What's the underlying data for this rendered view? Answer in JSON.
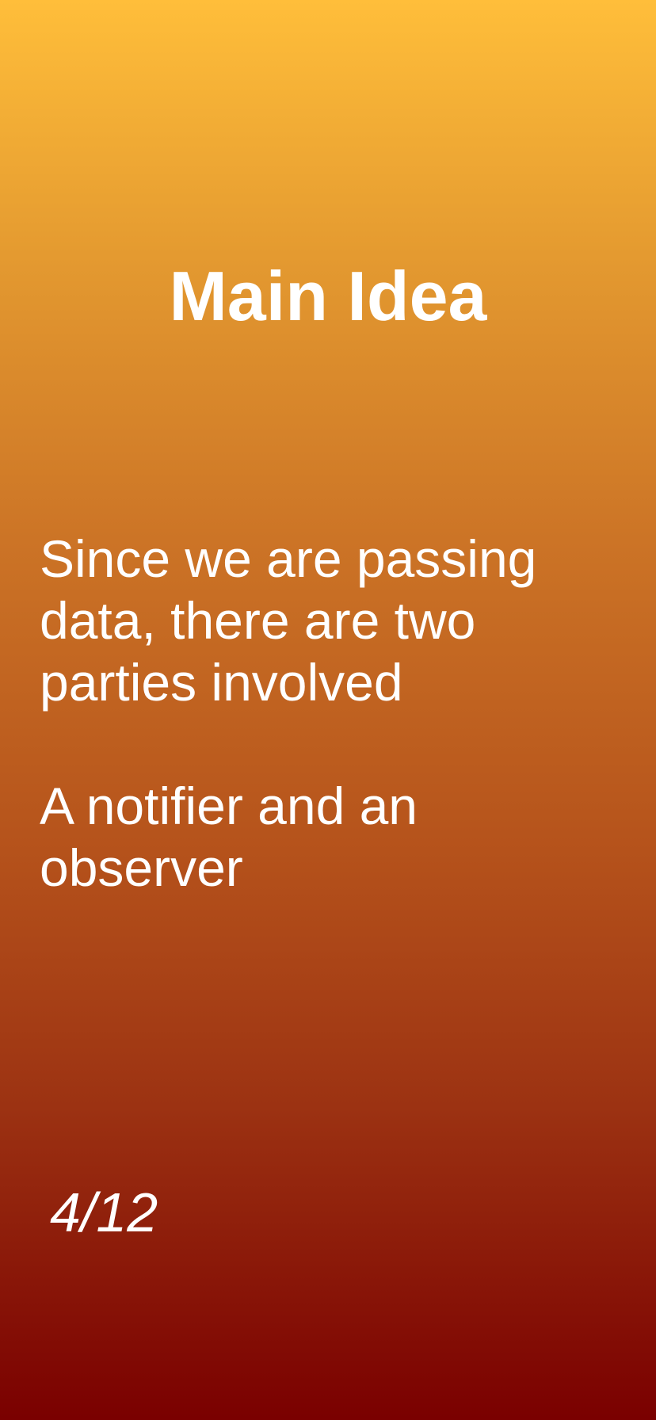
{
  "slide": {
    "title": "Main Idea",
    "paragraphs": [
      "Since we are passing data, there are two parties involved",
      "A notifier and an observer"
    ],
    "page_number": "4/12"
  },
  "colors": {
    "gradient_top": "#ffbe3a",
    "gradient_bottom": "#7a0000",
    "text": "#ffffff"
  }
}
